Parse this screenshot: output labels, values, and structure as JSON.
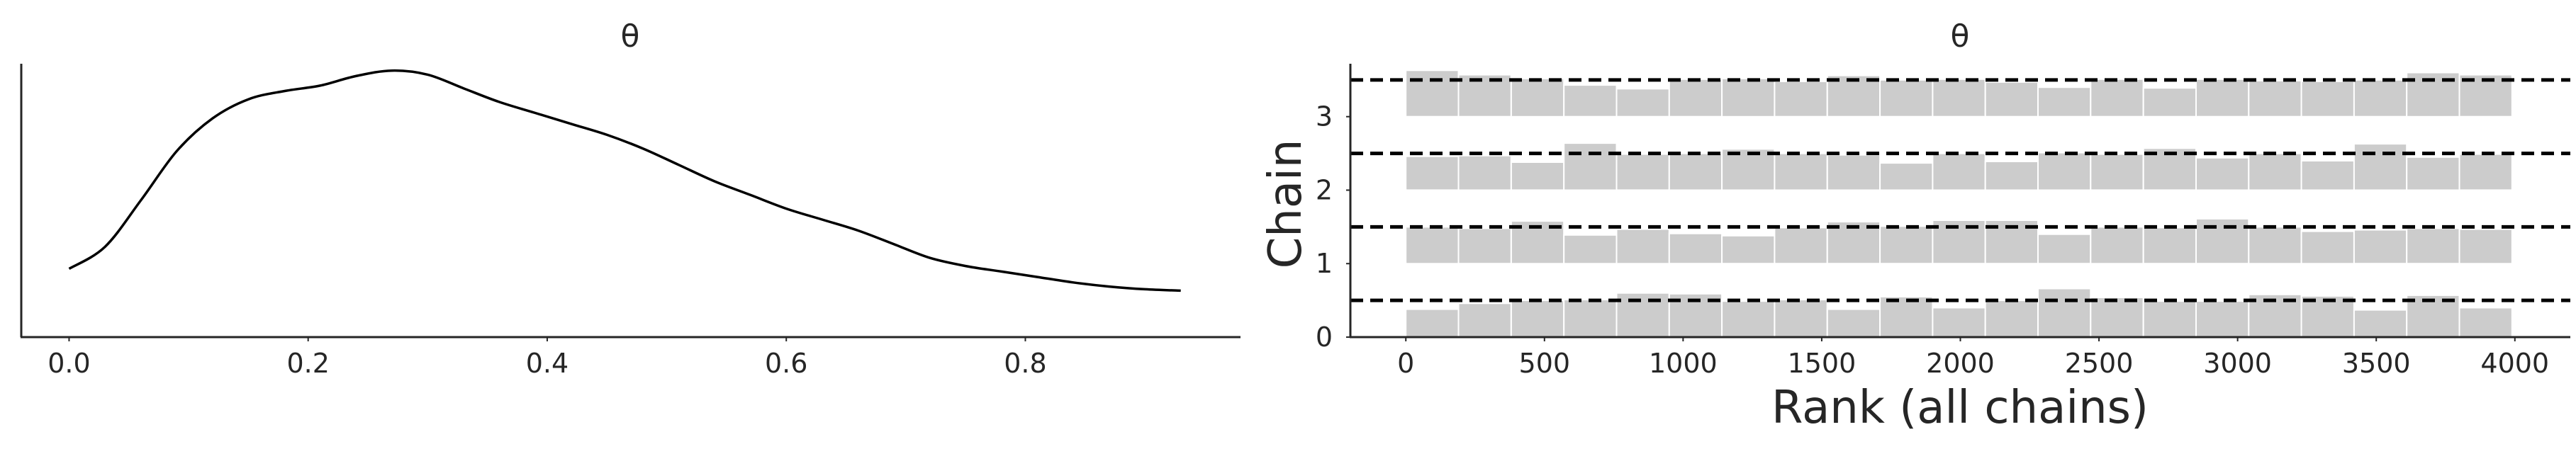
{
  "chart_data": [
    {
      "type": "line",
      "title": "θ",
      "xlabel": "",
      "ylabel": "",
      "xlim": [
        -0.04,
        0.98
      ],
      "ylim": [
        0,
        1
      ],
      "xticks": [
        "0.0",
        "0.2",
        "0.4",
        "0.6",
        "0.8"
      ],
      "grid": false,
      "x": [
        0.0,
        0.03,
        0.06,
        0.09,
        0.12,
        0.15,
        0.18,
        0.21,
        0.24,
        0.27,
        0.3,
        0.33,
        0.36,
        0.39,
        0.42,
        0.45,
        0.48,
        0.51,
        0.54,
        0.57,
        0.6,
        0.63,
        0.66,
        0.69,
        0.72,
        0.75,
        0.78,
        0.81,
        0.84,
        0.87,
        0.9,
        0.93
      ],
      "y": [
        0.25,
        0.33,
        0.5,
        0.68,
        0.8,
        0.87,
        0.9,
        0.92,
        0.955,
        0.975,
        0.96,
        0.91,
        0.86,
        0.82,
        0.78,
        0.74,
        0.69,
        0.63,
        0.57,
        0.52,
        0.47,
        0.43,
        0.39,
        0.34,
        0.29,
        0.26,
        0.24,
        0.22,
        0.2,
        0.185,
        0.175,
        0.17
      ]
    },
    {
      "type": "bar",
      "title": "θ",
      "xlabel": "Rank (all chains)",
      "ylabel": "Chain",
      "xlim": [
        -200,
        4200
      ],
      "ylim": [
        0,
        3.72
      ],
      "xticks": [
        "0",
        "500",
        "1000",
        "1500",
        "2000",
        "2500",
        "3000",
        "3500",
        "4000"
      ],
      "yticks": [
        "0",
        "1",
        "2",
        "3"
      ],
      "bar_color": "#cccccc",
      "reference_line_style": "dashed",
      "bin_width": 190,
      "bins_start": [
        0,
        190,
        380,
        570,
        760,
        950,
        1140,
        1330,
        1520,
        1710,
        1900,
        2090,
        2280,
        2470,
        2660,
        2850,
        3040,
        3230,
        3420,
        3610,
        3800
      ],
      "series": [
        {
          "chain": 0,
          "heights": [
            0.38,
            0.46,
            0.5,
            0.51,
            0.6,
            0.59,
            0.49,
            0.51,
            0.38,
            0.55,
            0.4,
            0.5,
            0.66,
            0.54,
            0.49,
            0.49,
            0.58,
            0.56,
            0.37,
            0.57,
            0.4
          ]
        },
        {
          "chain": 1,
          "heights": [
            0.5,
            0.48,
            0.58,
            0.39,
            0.47,
            0.41,
            0.38,
            0.49,
            0.57,
            0.51,
            0.59,
            0.59,
            0.4,
            0.5,
            0.49,
            0.61,
            0.5,
            0.44,
            0.46,
            0.48,
            0.47
          ]
        },
        {
          "chain": 2,
          "heights": [
            0.46,
            0.47,
            0.38,
            0.64,
            0.49,
            0.5,
            0.56,
            0.5,
            0.48,
            0.37,
            0.5,
            0.39,
            0.51,
            0.49,
            0.57,
            0.44,
            0.5,
            0.4,
            0.63,
            0.45,
            0.49
          ]
        },
        {
          "chain": 3,
          "heights": [
            0.63,
            0.57,
            0.52,
            0.43,
            0.38,
            0.51,
            0.52,
            0.48,
            0.56,
            0.5,
            0.51,
            0.47,
            0.4,
            0.51,
            0.39,
            0.51,
            0.49,
            0.48,
            0.5,
            0.6,
            0.57
          ]
        }
      ]
    }
  ]
}
